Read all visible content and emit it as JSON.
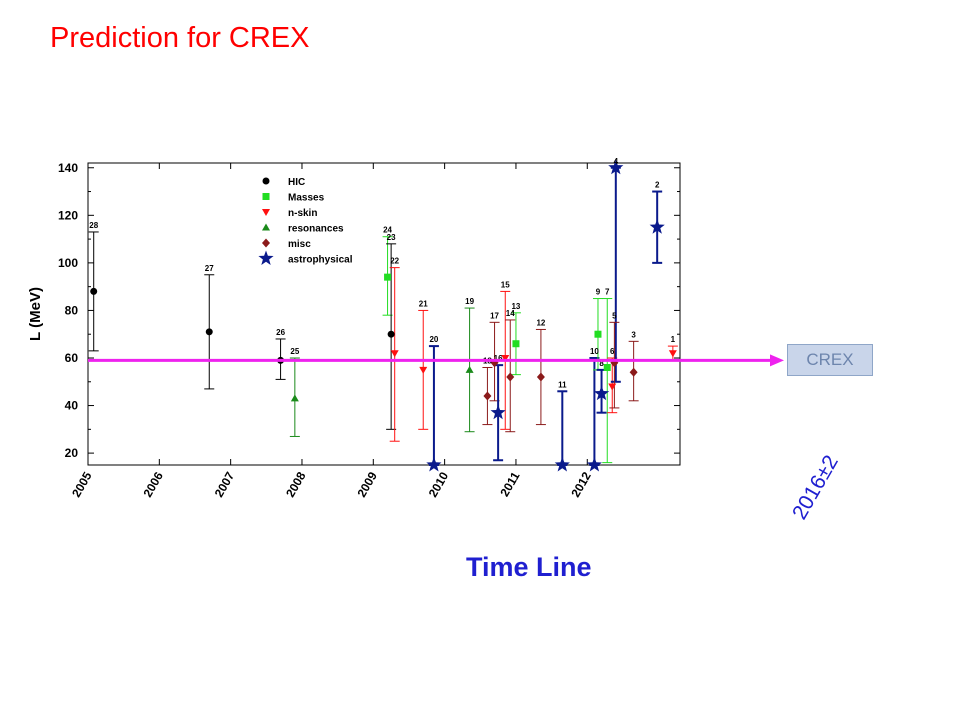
{
  "slide": {
    "title": "Prediction for CREX",
    "timeline_title": "Time Line",
    "crex_box_label": "CREX",
    "crex_date": "2016±2"
  },
  "colors": {
    "HIC": "#000000",
    "Masses": "#22dd22",
    "n-skin": "#ff1010",
    "resonances": "#1a8a1a",
    "misc": "#8b1a1a",
    "astrophysical": "#0a1a8c",
    "crex_line": "#ee22ee",
    "title": "#ff0000",
    "timeline": "#1f1fd0"
  },
  "chart_data": {
    "type": "scatter",
    "ylabel": "L (MeV)",
    "xlabel": "",
    "xlim": [
      2005,
      2013.3
    ],
    "ylim": [
      15,
      142
    ],
    "yticks": [
      20,
      40,
      60,
      80,
      100,
      120,
      140
    ],
    "xticks": [
      "2005",
      "2006",
      "2007",
      "2008",
      "2009",
      "2010",
      "2011",
      "2012"
    ],
    "legend": {
      "placement": "top-center",
      "entries": [
        "HIC",
        "Masses",
        "n-skin",
        "resonances",
        "misc",
        "astrophysical"
      ]
    },
    "crex_line": {
      "y": 59,
      "label": "CREX"
    },
    "points": [
      {
        "x": 2005.08,
        "y": 88,
        "lo": 63,
        "hi": 113,
        "cat": "HIC",
        "label": "28"
      },
      {
        "x": 2006.7,
        "y": 71,
        "lo": 47,
        "hi": 95,
        "cat": "HIC",
        "label": "27"
      },
      {
        "x": 2007.7,
        "y": 59,
        "lo": 51,
        "hi": 68,
        "cat": "HIC",
        "label": "26"
      },
      {
        "x": 2007.9,
        "y": 43,
        "lo": 27,
        "hi": 60,
        "cat": "resonances",
        "label": "25"
      },
      {
        "x": 2009.2,
        "y": 94,
        "lo": 78,
        "hi": 111,
        "cat": "Masses",
        "label": "24"
      },
      {
        "x": 2009.25,
        "y": 70,
        "lo": 30,
        "hi": 108,
        "cat": "HIC",
        "label": "23"
      },
      {
        "x": 2009.3,
        "y": 62,
        "lo": 25,
        "hi": 98,
        "cat": "n-skin",
        "label": "22"
      },
      {
        "x": 2009.7,
        "y": 55,
        "lo": 30,
        "hi": 80,
        "cat": "n-skin",
        "label": "21"
      },
      {
        "x": 2009.85,
        "y": 15,
        "lo": 15,
        "hi": 65,
        "cat": "astrophysical",
        "label": "20"
      },
      {
        "x": 2010.35,
        "y": 55,
        "lo": 29,
        "hi": 81,
        "cat": "resonances",
        "label": "19"
      },
      {
        "x": 2010.6,
        "y": 44,
        "lo": 32,
        "hi": 56,
        "cat": "misc",
        "label": "18"
      },
      {
        "x": 2010.7,
        "y": 58,
        "lo": 42,
        "hi": 75,
        "cat": "misc",
        "label": "17"
      },
      {
        "x": 2010.75,
        "y": 37,
        "lo": 17,
        "hi": 57,
        "cat": "astrophysical",
        "label": "16"
      },
      {
        "x": 2010.85,
        "y": 60,
        "lo": 30,
        "hi": 88,
        "cat": "n-skin",
        "label": "15"
      },
      {
        "x": 2010.92,
        "y": 52,
        "lo": 29,
        "hi": 76,
        "cat": "misc",
        "label": "14"
      },
      {
        "x": 2011.0,
        "y": 66,
        "lo": 53,
        "hi": 79,
        "cat": "Masses",
        "label": "13"
      },
      {
        "x": 2011.35,
        "y": 52,
        "lo": 32,
        "hi": 72,
        "cat": "misc",
        "label": "12"
      },
      {
        "x": 2011.65,
        "y": 15,
        "lo": 15,
        "hi": 46,
        "cat": "astrophysical",
        "label": "11"
      },
      {
        "x": 2012.1,
        "y": 15,
        "lo": 15,
        "hi": 60,
        "cat": "astrophysical",
        "label": "10"
      },
      {
        "x": 2012.15,
        "y": 70,
        "lo": 55,
        "hi": 85,
        "cat": "Masses",
        "label": "9"
      },
      {
        "x": 2012.2,
        "y": 45,
        "lo": 37,
        "hi": 55,
        "cat": "astrophysical",
        "label": "8"
      },
      {
        "x": 2012.28,
        "y": 56,
        "lo": 16,
        "hi": 85,
        "cat": "Masses",
        "label": "7"
      },
      {
        "x": 2012.35,
        "y": 48,
        "lo": 37,
        "hi": 60,
        "cat": "n-skin",
        "label": "6"
      },
      {
        "x": 2012.4,
        "y": 140,
        "lo": 50,
        "hi": 140,
        "cat": "astrophysical",
        "label": "4"
      },
      {
        "x": 2012.38,
        "y": 58,
        "lo": 39,
        "hi": 75,
        "cat": "misc",
        "label": "5"
      },
      {
        "x": 2012.65,
        "y": 54,
        "lo": 42,
        "hi": 67,
        "cat": "misc",
        "label": "3"
      },
      {
        "x": 2012.98,
        "y": 115,
        "lo": 100,
        "hi": 130,
        "cat": "astrophysical",
        "label": "2"
      },
      {
        "x": 2013.2,
        "y": 62,
        "lo": 59,
        "hi": 65,
        "cat": "n-skin",
        "label": "1"
      }
    ]
  }
}
